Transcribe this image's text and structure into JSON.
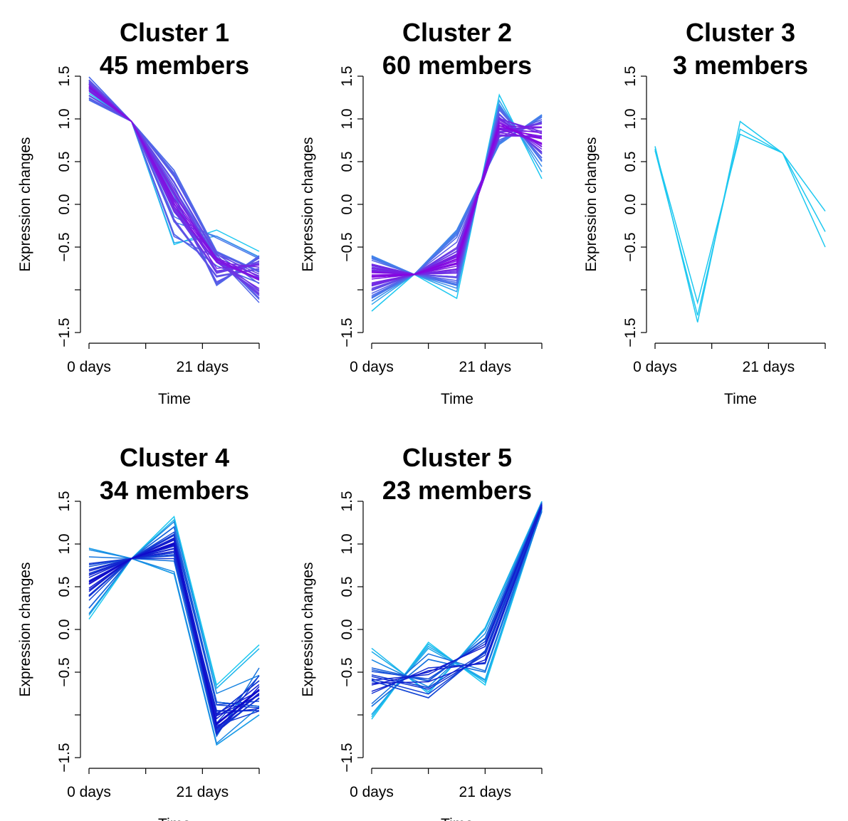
{
  "chart_data": [
    {
      "type": "line",
      "title": "Cluster 1",
      "subtitle": "45 members",
      "xlabel": "Time",
      "ylabel": "Expression changes",
      "x_ticks": [
        "0 days",
        "",
        "21 days",
        ""
      ],
      "y_ticks": [
        "-1.5",
        "",
        "-0.5",
        "0.0",
        "0.5",
        "1.0",
        "1.5"
      ],
      "ylim": [
        -1.5,
        1.5
      ],
      "member_count": 45,
      "color_range": [
        "#1ec8f0",
        "#8a00e0"
      ],
      "series_profiles": [
        [
          1.49,
          0.97,
          -0.35,
          -0.72,
          -0.92
        ],
        [
          1.4,
          0.97,
          -0.05,
          -0.78,
          -0.7
        ],
        [
          1.22,
          0.97,
          0.4,
          -0.55,
          -0.78
        ],
        [
          1.3,
          0.97,
          -0.47,
          -0.3,
          -0.55
        ],
        [
          1.45,
          0.97,
          0.1,
          -0.95,
          -0.6
        ],
        [
          1.35,
          0.97,
          0.25,
          -0.62,
          -1.15
        ],
        [
          1.42,
          0.97,
          -0.2,
          -0.85,
          -0.75
        ],
        [
          1.38,
          0.97,
          0.0,
          -0.65,
          -0.88
        ]
      ]
    },
    {
      "type": "line",
      "title": "Cluster 2",
      "subtitle": "60 members",
      "xlabel": "Time",
      "ylabel": "Expression changes",
      "x_ticks": [
        "0 days",
        "",
        "21 days",
        ""
      ],
      "y_ticks": [
        "-1.5",
        "",
        "-0.5",
        "0.0",
        "0.5",
        "1.0",
        "1.5"
      ],
      "ylim": [
        -1.5,
        1.5
      ],
      "member_count": 60,
      "color_range": [
        "#1ec8f0",
        "#8a00e0"
      ],
      "series_profiles": [
        [
          -1.25,
          -0.82,
          -1.1,
          1.28,
          0.3
        ],
        [
          -0.6,
          -0.82,
          -0.3,
          0.7,
          1.05
        ],
        [
          -0.95,
          -0.82,
          -0.8,
          1.0,
          0.85
        ],
        [
          -1.1,
          -0.82,
          -0.95,
          1.15,
          0.5
        ],
        [
          -0.75,
          -0.82,
          -0.55,
          0.85,
          0.95
        ],
        [
          -0.85,
          -0.82,
          -0.7,
          0.95,
          0.7
        ],
        [
          -1.0,
          -0.82,
          -0.85,
          1.05,
          0.6
        ],
        [
          -0.7,
          -0.82,
          -0.6,
          0.8,
          0.8
        ]
      ]
    },
    {
      "type": "line",
      "title": "Cluster 3",
      "subtitle": "3 members",
      "xlabel": "Time",
      "ylabel": "Expression changes",
      "x_ticks": [
        "0 days",
        "",
        "21 days",
        ""
      ],
      "y_ticks": [
        "-1.5",
        "",
        "-0.5",
        "0.0",
        "0.5",
        "1.0",
        "1.5"
      ],
      "ylim": [
        -1.5,
        1.5
      ],
      "member_count": 3,
      "color_range": [
        "#1ec8f0",
        "#1ec8f0"
      ],
      "series_profiles": [
        [
          0.68,
          -1.38,
          0.97,
          0.6,
          -0.08
        ],
        [
          0.63,
          -1.3,
          0.88,
          0.6,
          -0.32
        ],
        [
          0.65,
          -1.15,
          0.82,
          0.6,
          -0.5
        ]
      ]
    },
    {
      "type": "line",
      "title": "Cluster 4",
      "subtitle": "34 members",
      "xlabel": "Time",
      "ylabel": "Expression changes",
      "x_ticks": [
        "0 days",
        "",
        "21 days",
        ""
      ],
      "y_ticks": [
        "-1.5",
        "",
        "-0.5",
        "0.0",
        "0.5",
        "1.0",
        "1.5"
      ],
      "ylim": [
        -1.5,
        1.5
      ],
      "member_count": 34,
      "color_range": [
        "#1ec8f0",
        "#1000c8"
      ],
      "series_profiles": [
        [
          0.12,
          0.83,
          1.32,
          -0.65,
          -0.18
        ],
        [
          0.95,
          0.83,
          0.65,
          -1.35,
          -1.0
        ],
        [
          0.4,
          0.83,
          1.1,
          -1.2,
          -0.8
        ],
        [
          0.7,
          0.83,
          0.9,
          -1.0,
          -0.6
        ],
        [
          0.25,
          0.83,
          1.2,
          -0.85,
          -0.9
        ],
        [
          0.85,
          0.83,
          0.8,
          -1.25,
          -0.45
        ],
        [
          0.55,
          0.83,
          1.0,
          -1.1,
          -0.7
        ],
        [
          0.65,
          0.83,
          0.95,
          -0.95,
          -0.95
        ]
      ]
    },
    {
      "type": "line",
      "title": "Cluster 5",
      "subtitle": "23 members",
      "xlabel": "Time",
      "ylabel": "Expression changes",
      "x_ticks": [
        "0 days",
        "",
        "21 days",
        ""
      ],
      "y_ticks": [
        "-1.5",
        "",
        "-0.5",
        "0.0",
        "0.5",
        "1.0",
        "1.5"
      ],
      "ylim": [
        -1.5,
        1.5
      ],
      "member_count": 23,
      "color_range": [
        "#1ec8f0",
        "#1000c8"
      ],
      "series_profiles": [
        [
          -0.22,
          -0.75,
          0.02,
          1.5
        ],
        [
          -1.05,
          -0.15,
          -0.65,
          1.4
        ],
        [
          -0.6,
          -0.8,
          -0.25,
          1.45
        ],
        [
          -0.75,
          -0.45,
          -0.4,
          1.42
        ],
        [
          -0.45,
          -0.6,
          -0.1,
          1.48
        ],
        [
          -0.9,
          -0.35,
          -0.5,
          1.38
        ],
        [
          -0.55,
          -0.7,
          -0.3,
          1.44
        ],
        [
          -0.65,
          -0.5,
          -0.2,
          1.46
        ]
      ]
    }
  ]
}
